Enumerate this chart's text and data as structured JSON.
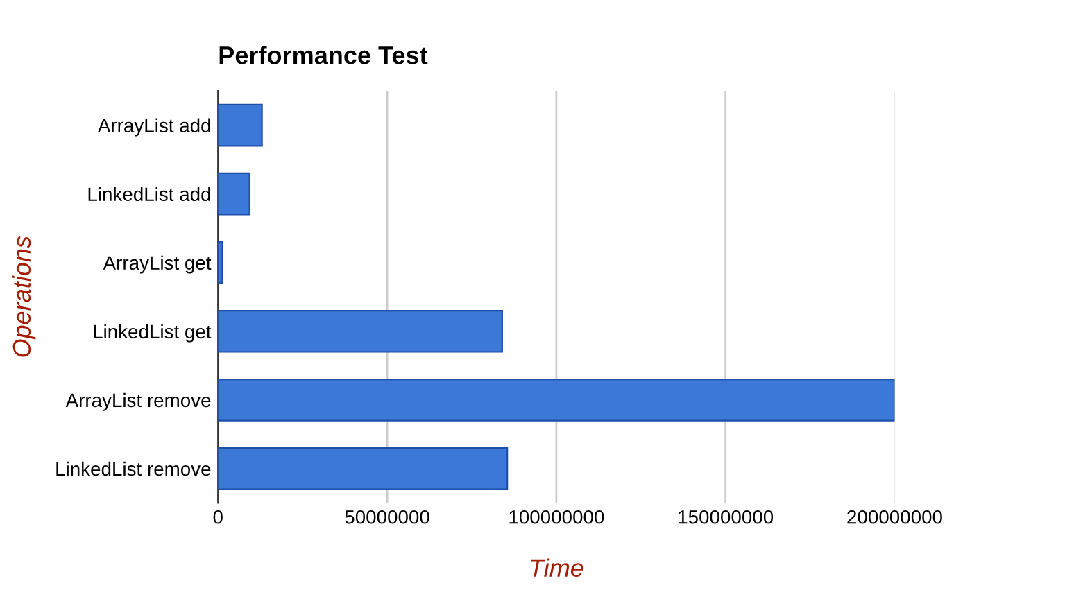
{
  "chart_data": {
    "type": "bar",
    "orientation": "horizontal",
    "title": "Performance Test",
    "xlabel": "Time",
    "ylabel": "Operations",
    "categories": [
      "ArrayList add",
      "LinkedList add",
      "ArrayList get",
      "LinkedList get",
      "ArrayList remove",
      "LinkedList remove"
    ],
    "values": [
      13000000,
      9300000,
      1300000,
      84000000,
      200000000,
      85500000
    ],
    "color": "#3c78d8",
    "xlim": [
      0,
      200000000
    ],
    "xticks": [
      0,
      50000000,
      100000000,
      150000000,
      200000000
    ],
    "grid": "x"
  }
}
